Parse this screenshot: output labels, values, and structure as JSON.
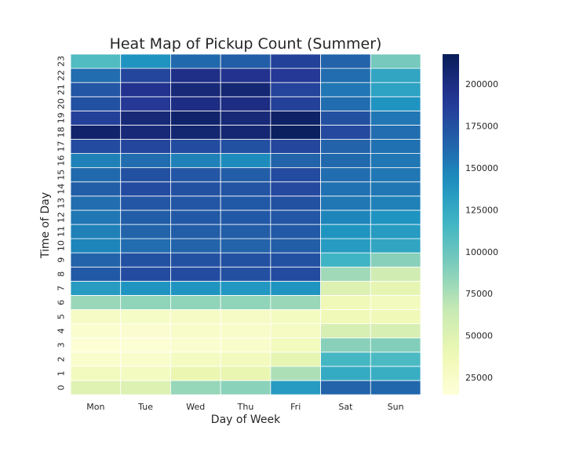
{
  "chart_data": {
    "type": "heatmap",
    "title": "Heat Map of Pickup Count (Summer)",
    "xlabel": "Day of Week",
    "ylabel": "Time of Day",
    "x_categories": [
      "Mon",
      "Tue",
      "Wed",
      "Thu",
      "Fri",
      "Sat",
      "Sun"
    ],
    "y_categories": [
      "0",
      "1",
      "2",
      "3",
      "4",
      "5",
      "6",
      "7",
      "8",
      "9",
      "10",
      "11",
      "12",
      "13",
      "14",
      "15",
      "16",
      "17",
      "18",
      "19",
      "20",
      "21",
      "22",
      "23"
    ],
    "colorbar": {
      "colormap": "YlGnBu",
      "range": [
        15000,
        218000
      ],
      "ticks": [
        25000,
        50000,
        75000,
        100000,
        125000,
        150000,
        175000,
        200000
      ],
      "tick_labels": [
        "25000",
        "50000",
        "75000",
        "100000",
        "125000",
        "150000",
        "175000",
        "200000"
      ]
    },
    "values": [
      [
        50000,
        52000,
        83000,
        87000,
        135000,
        165000,
        163000
      ],
      [
        33000,
        30000,
        42000,
        44000,
        75000,
        125000,
        122000
      ],
      [
        23000,
        24000,
        30000,
        32000,
        45000,
        115000,
        112000
      ],
      [
        18000,
        19000,
        22000,
        24000,
        33000,
        88000,
        90000
      ],
      [
        22000,
        21000,
        25000,
        25000,
        29000,
        55000,
        55000
      ],
      [
        28000,
        27000,
        28000,
        28000,
        30000,
        35000,
        35000
      ],
      [
        82000,
        85000,
        85000,
        85000,
        82000,
        36000,
        32000
      ],
      [
        135000,
        140000,
        140000,
        138000,
        140000,
        52000,
        45000
      ],
      [
        170000,
        178000,
        178000,
        176000,
        178000,
        80000,
        60000
      ],
      [
        165000,
        175000,
        175000,
        175000,
        175000,
        118000,
        88000
      ],
      [
        148000,
        160000,
        165000,
        165000,
        168000,
        135000,
        128000
      ],
      [
        150000,
        165000,
        168000,
        168000,
        170000,
        140000,
        135000
      ],
      [
        155000,
        168000,
        170000,
        170000,
        172000,
        148000,
        140000
      ],
      [
        160000,
        172000,
        172000,
        170000,
        175000,
        155000,
        150000
      ],
      [
        168000,
        178000,
        175000,
        173000,
        180000,
        158000,
        155000
      ],
      [
        162000,
        175000,
        172000,
        168000,
        178000,
        160000,
        155000
      ],
      [
        150000,
        160000,
        150000,
        145000,
        165000,
        162000,
        155000
      ],
      [
        178000,
        182000,
        178000,
        175000,
        182000,
        165000,
        158000
      ],
      [
        210000,
        205000,
        208000,
        207000,
        215000,
        180000,
        160000
      ],
      [
        185000,
        205000,
        210000,
        205000,
        212000,
        175000,
        155000
      ],
      [
        175000,
        190000,
        200000,
        200000,
        185000,
        160000,
        140000
      ],
      [
        172000,
        195000,
        205000,
        207000,
        183000,
        155000,
        130000
      ],
      [
        160000,
        182000,
        198000,
        195000,
        190000,
        160000,
        128000
      ],
      [
        110000,
        140000,
        162000,
        168000,
        185000,
        165000,
        95000
      ]
    ]
  }
}
